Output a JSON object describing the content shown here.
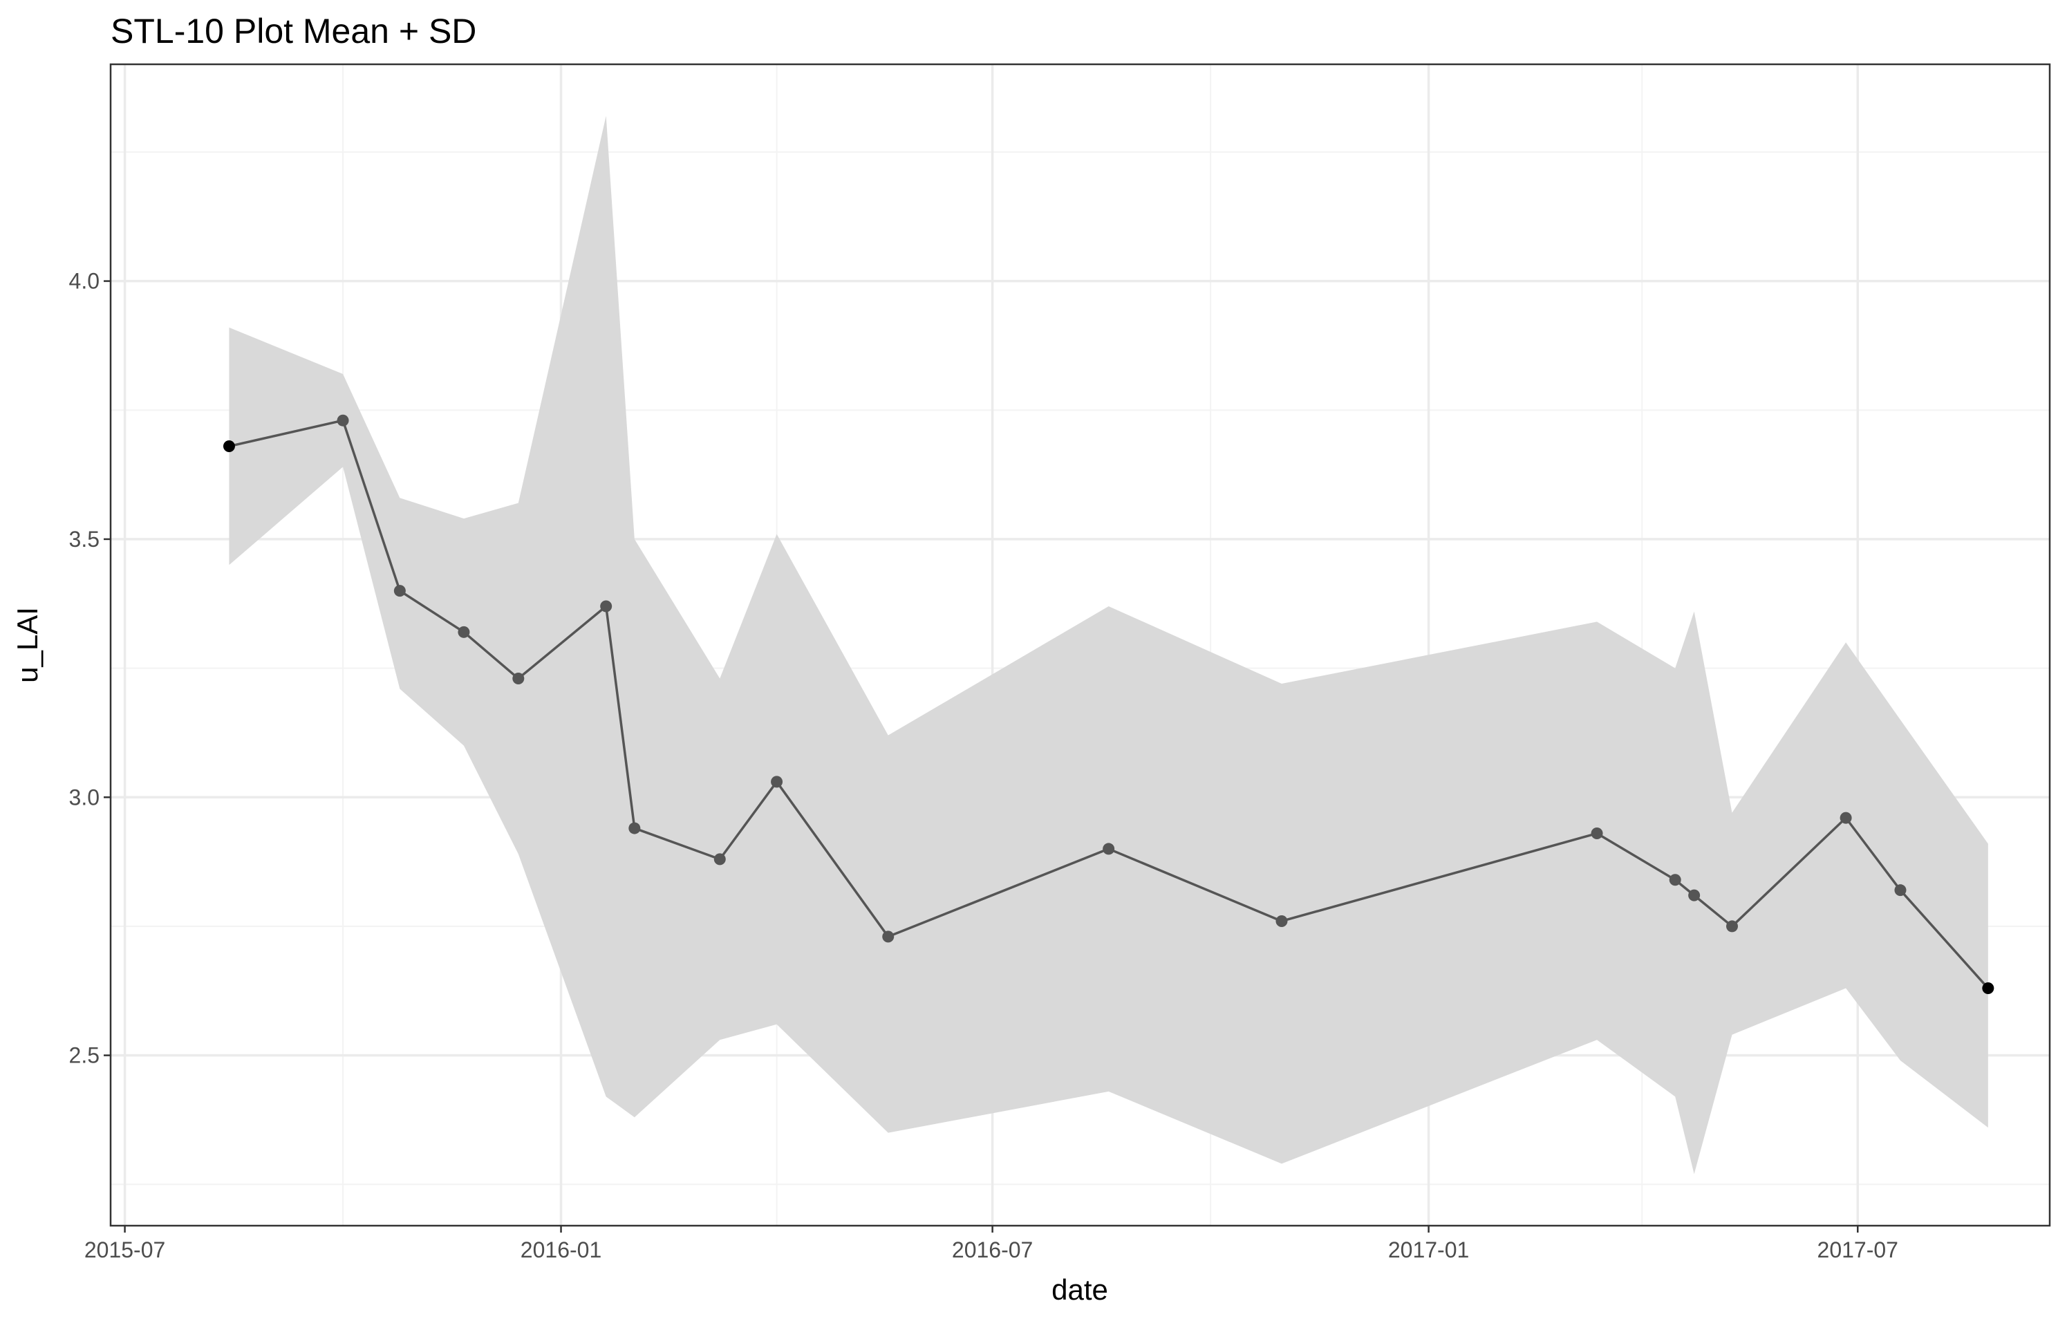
{
  "chart_data": {
    "type": "line",
    "title": "STL-10 Plot Mean + SD",
    "xlabel": "date",
    "ylabel": "u_LAI",
    "x_type": "date",
    "xlim": [
      "2015-06-25",
      "2017-09-20"
    ],
    "ylim": [
      2.17,
      4.42
    ],
    "x_ticks": [
      {
        "date": "2015-07-01",
        "label": "2015-07"
      },
      {
        "date": "2016-01-01",
        "label": "2016-01"
      },
      {
        "date": "2016-07-01",
        "label": "2016-07"
      },
      {
        "date": "2017-01-01",
        "label": "2017-01"
      },
      {
        "date": "2017-07-01",
        "label": "2017-07"
      }
    ],
    "x_minor_ticks": [
      "2015-10-01",
      "2016-04-01",
      "2016-10-01",
      "2017-04-01",
      "2017-10-01"
    ],
    "y_ticks": [
      {
        "value": 2.5,
        "label": "2.5"
      },
      {
        "value": 3.0,
        "label": "3.0"
      },
      {
        "value": 3.5,
        "label": "3.5"
      },
      {
        "value": 4.0,
        "label": "4.0"
      }
    ],
    "y_minor_ticks": [
      2.25,
      2.75,
      3.25,
      3.75,
      4.25
    ],
    "grid": true,
    "legend": false,
    "colors": {
      "line": "#555555",
      "point": "#555555",
      "endpoint": "#000000",
      "ribbon": "#d9d9d9"
    },
    "series": [
      {
        "points": [
          {
            "date": "2015-08-14",
            "mean": 3.68,
            "lower": 3.45,
            "upper": 3.91
          },
          {
            "date": "2015-10-01",
            "mean": 3.73,
            "lower": 3.64,
            "upper": 3.82
          },
          {
            "date": "2015-10-25",
            "mean": 3.4,
            "lower": 3.21,
            "upper": 3.58
          },
          {
            "date": "2015-11-21",
            "mean": 3.32,
            "lower": 3.1,
            "upper": 3.54
          },
          {
            "date": "2015-12-14",
            "mean": 3.23,
            "lower": 2.89,
            "upper": 3.57
          },
          {
            "date": "2016-01-20",
            "mean": 3.37,
            "lower": 2.42,
            "upper": 4.32
          },
          {
            "date": "2016-02-01",
            "mean": 2.94,
            "lower": 2.38,
            "upper": 3.5
          },
          {
            "date": "2016-03-08",
            "mean": 2.88,
            "lower": 2.53,
            "upper": 3.23
          },
          {
            "date": "2016-04-01",
            "mean": 3.03,
            "lower": 2.56,
            "upper": 3.51
          },
          {
            "date": "2016-05-18",
            "mean": 2.73,
            "lower": 2.35,
            "upper": 3.12
          },
          {
            "date": "2016-08-19",
            "mean": 2.9,
            "lower": 2.43,
            "upper": 3.37
          },
          {
            "date": "2016-10-31",
            "mean": 2.76,
            "lower": 2.29,
            "upper": 3.22
          },
          {
            "date": "2017-03-13",
            "mean": 2.93,
            "lower": 2.53,
            "upper": 3.34
          },
          {
            "date": "2017-04-15",
            "mean": 2.84,
            "lower": 2.42,
            "upper": 3.25
          },
          {
            "date": "2017-04-23",
            "mean": 2.81,
            "lower": 2.27,
            "upper": 3.36
          },
          {
            "date": "2017-05-09",
            "mean": 2.75,
            "lower": 2.54,
            "upper": 2.97
          },
          {
            "date": "2017-06-26",
            "mean": 2.96,
            "lower": 2.63,
            "upper": 3.3
          },
          {
            "date": "2017-07-19",
            "mean": 2.82,
            "lower": 2.49,
            "upper": 3.15
          },
          {
            "date": "2017-08-25",
            "mean": 2.63,
            "lower": 2.36,
            "upper": 2.91
          }
        ]
      }
    ]
  }
}
